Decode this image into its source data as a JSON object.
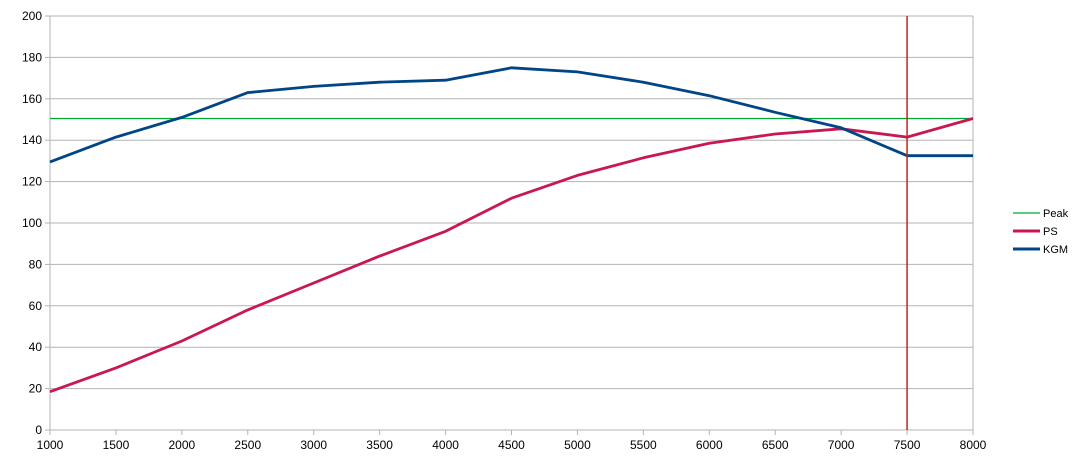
{
  "chart_data": {
    "type": "line",
    "title": "",
    "xlabel": "",
    "ylabel": "",
    "xlim": [
      1000,
      8000
    ],
    "ylim": [
      0,
      200
    ],
    "x_ticks": [
      "1000",
      "1500",
      "2000",
      "2500",
      "3000",
      "3500",
      "4000",
      "4500",
      "5000",
      "5500",
      "6000",
      "6500",
      "7000",
      "7500",
      "8000"
    ],
    "y_ticks": [
      "0",
      "20",
      "40",
      "60",
      "80",
      "100",
      "120",
      "140",
      "160",
      "180",
      "200"
    ],
    "grid": true,
    "legend_position": "right",
    "x": [
      1000,
      1500,
      2000,
      2500,
      3000,
      3500,
      4000,
      4500,
      5000,
      5500,
      6000,
      6500,
      7000,
      7500,
      8000
    ],
    "series": [
      {
        "name": "Peak",
        "color": "#00a933",
        "values": [
          150.5,
          150.5,
          150.5,
          150.5,
          150.5,
          150.5,
          150.5,
          150.5,
          150.5,
          150.5,
          150.5,
          150.5,
          150.5,
          150.5,
          150.5
        ]
      },
      {
        "name": "PS",
        "color": "#c9174f",
        "values": [
          18.5,
          30,
          43,
          58,
          71,
          84,
          96,
          112,
          123,
          131.5,
          138.5,
          143,
          145.5,
          141.5,
          150.5
        ]
      },
      {
        "name": "KGM",
        "color": "#004586",
        "values": [
          129.5,
          141.5,
          151,
          163,
          166,
          168,
          169,
          175,
          173,
          168,
          161.5,
          153.5,
          146,
          132.5,
          132.5
        ]
      }
    ],
    "vertical_marker": {
      "x": 7500,
      "color": "#c9211e"
    }
  }
}
